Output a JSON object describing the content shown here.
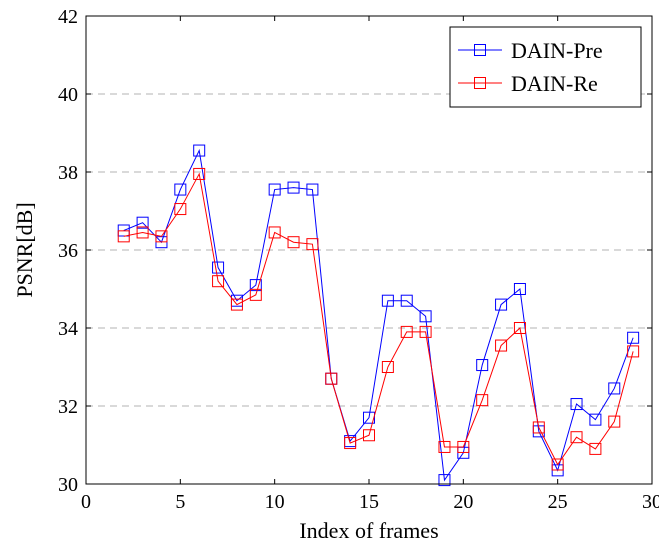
{
  "chart_data": {
    "type": "line",
    "xlabel": "Index of frames",
    "ylabel": "PSNR[dB]",
    "xlim": [
      0,
      30
    ],
    "ylim": [
      30,
      42
    ],
    "xticks": [
      0,
      5,
      10,
      15,
      20,
      25,
      30
    ],
    "yticks": [
      30,
      32,
      34,
      36,
      38,
      40,
      42
    ],
    "grid": "horizontal dashed",
    "legend_position": "top-right",
    "x": [
      2,
      3,
      4,
      5,
      6,
      7,
      8,
      9,
      10,
      11,
      12,
      13,
      14,
      15,
      16,
      17,
      18,
      19,
      20,
      21,
      22,
      23,
      24,
      25,
      26,
      27,
      28,
      29
    ],
    "series": [
      {
        "name": "DAIN-Pre",
        "color": "#0000ff",
        "marker": "square",
        "values": [
          36.5,
          36.7,
          36.2,
          37.55,
          38.55,
          35.55,
          34.7,
          35.1,
          37.55,
          37.6,
          37.55,
          32.7,
          31.1,
          31.7,
          34.7,
          34.7,
          34.3,
          30.1,
          30.8,
          33.05,
          34.6,
          35.0,
          31.35,
          30.35,
          32.05,
          31.65,
          32.45,
          33.75
        ]
      },
      {
        "name": "DAIN-Re",
        "color": "#ff0000",
        "marker": "square",
        "values": [
          36.35,
          36.45,
          36.35,
          37.05,
          37.95,
          35.2,
          34.6,
          34.85,
          36.45,
          36.2,
          36.15,
          32.7,
          31.05,
          31.25,
          33.0,
          33.9,
          33.9,
          30.95,
          30.95,
          32.15,
          33.55,
          34.0,
          31.45,
          30.5,
          31.2,
          30.9,
          31.6,
          33.4
        ]
      }
    ]
  }
}
